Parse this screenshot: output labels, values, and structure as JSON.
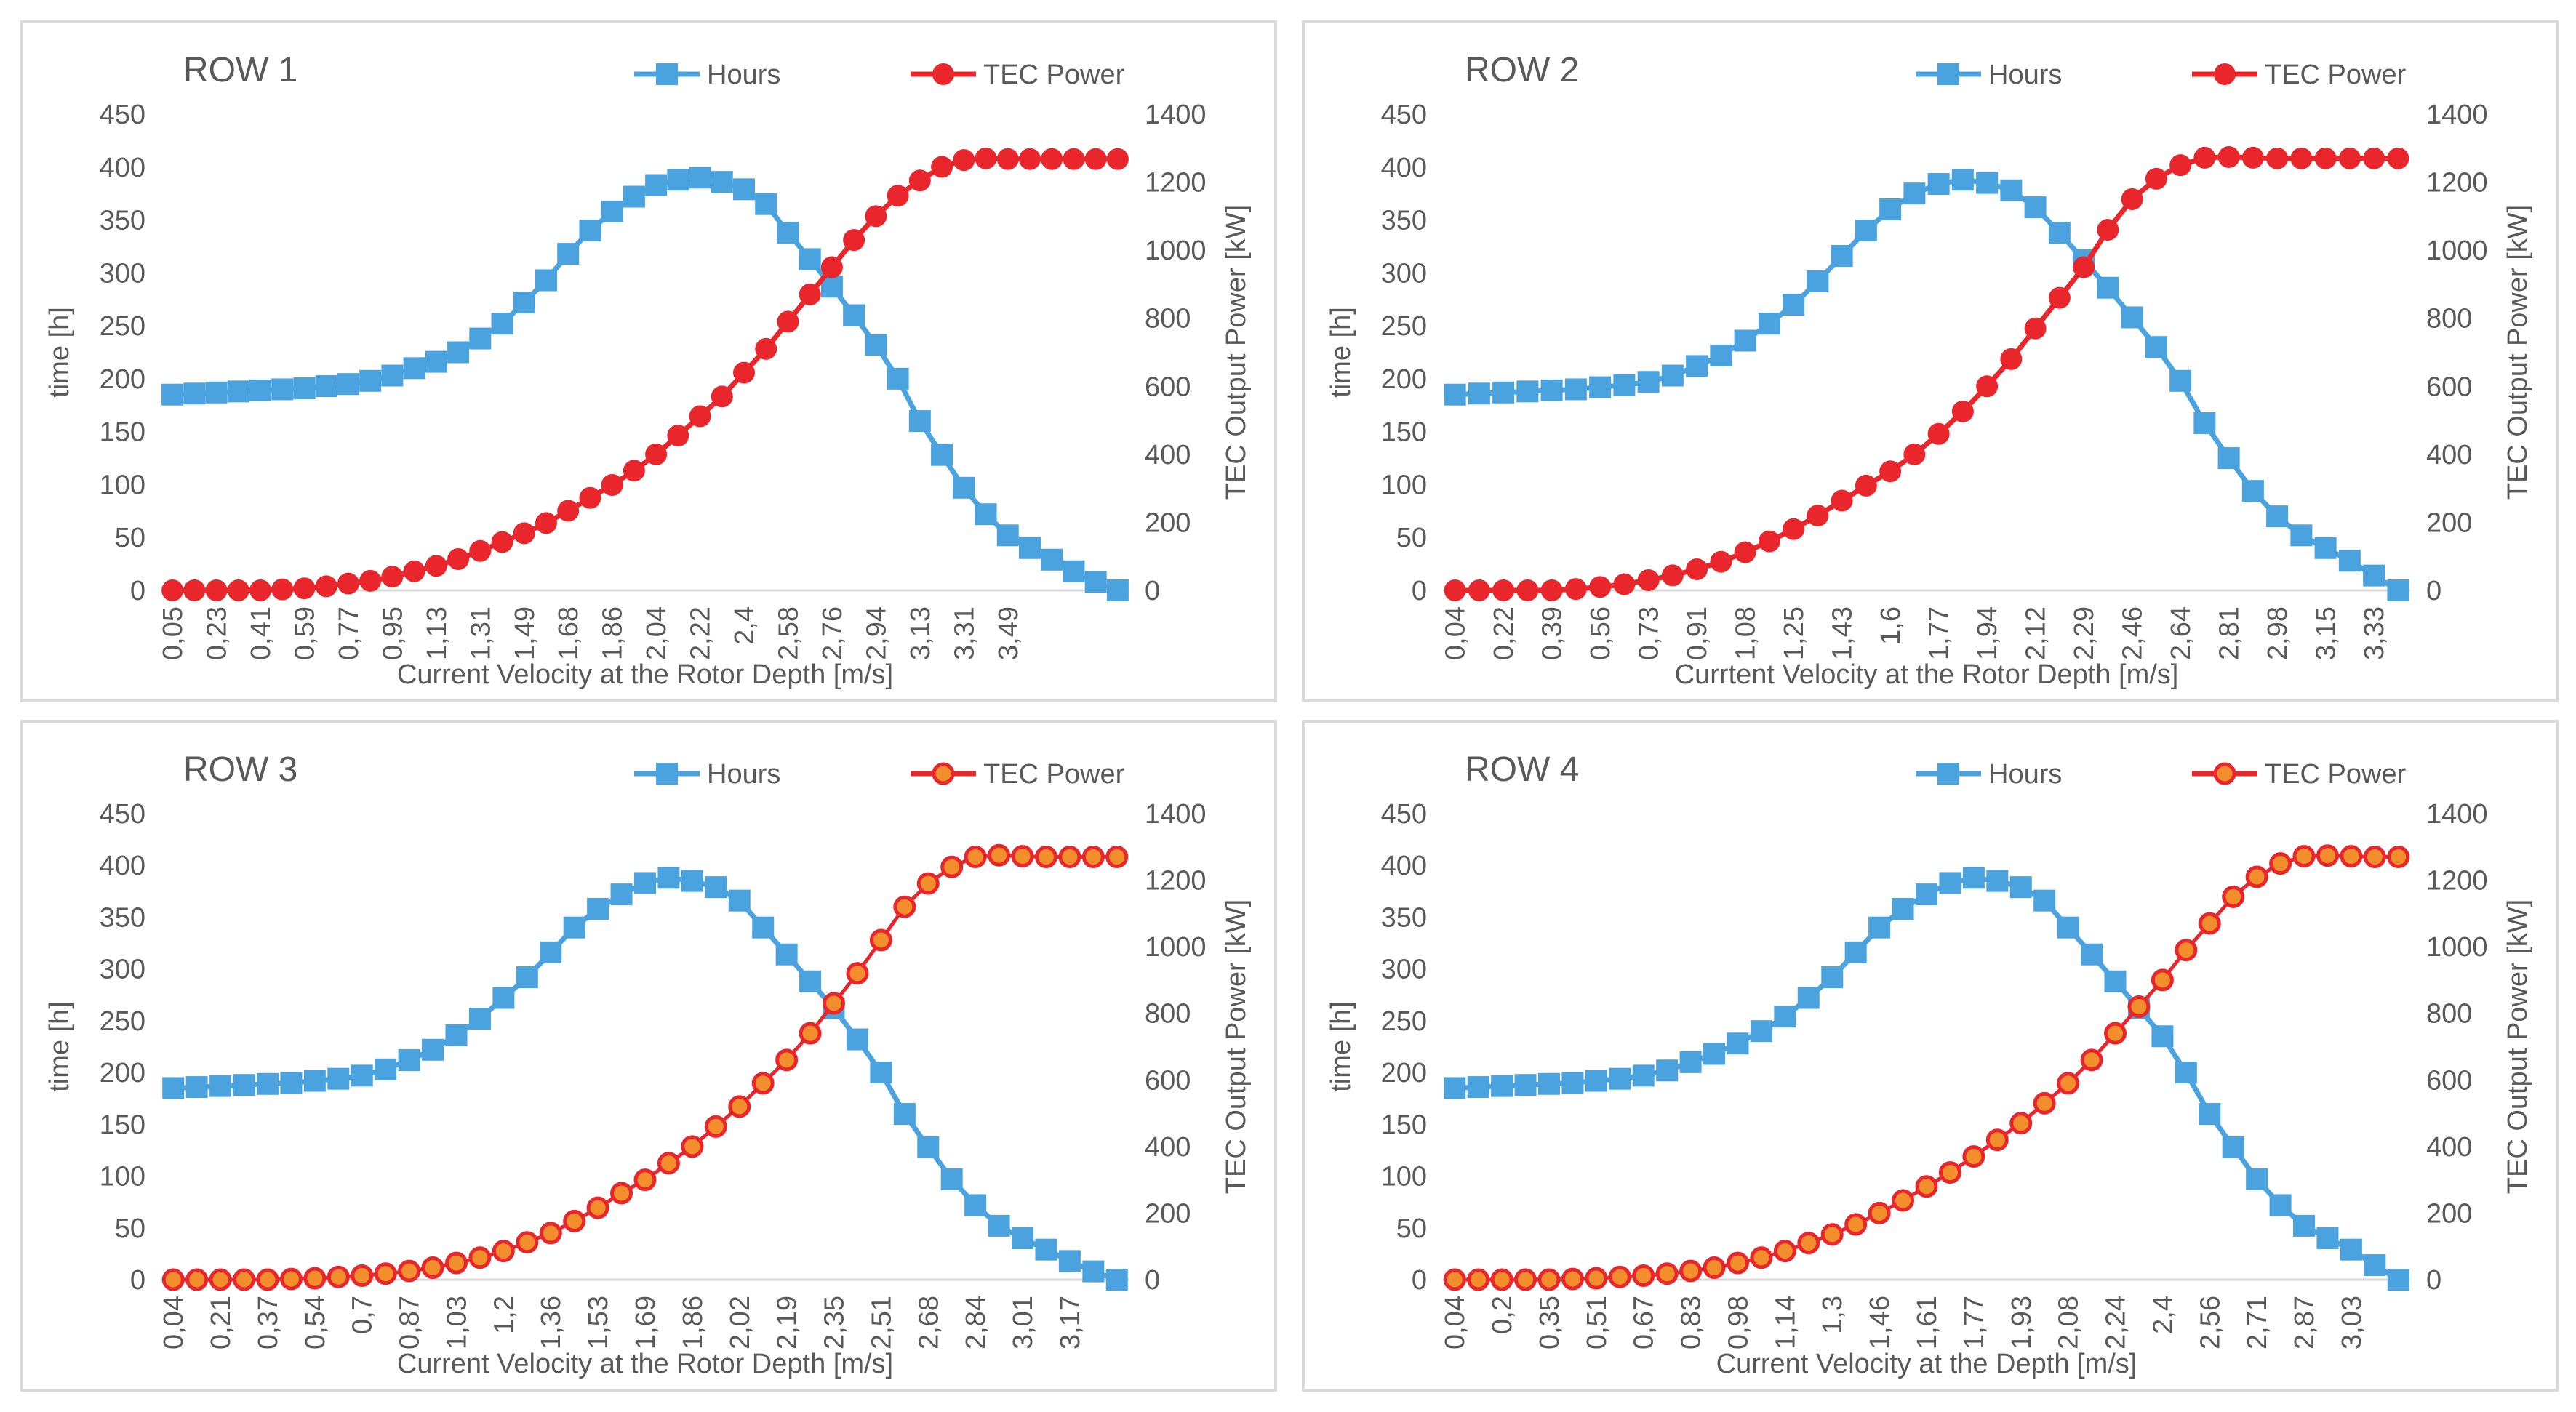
{
  "colors": {
    "hours": "#4aa3df",
    "power": "#e8262c",
    "power_marker_fill": "#f28e2b",
    "axis_text": "#595959",
    "border": "#d9d9d9"
  },
  "chart_data": [
    {
      "type": "line",
      "title": "ROW 1",
      "xlabel": "Current Velocity at the Rotor Depth [m/s]",
      "ylabel": "time [h]",
      "y2label": "TEC Output Power [kW]",
      "ylim": [
        0,
        450
      ],
      "yticks": [
        0,
        50,
        100,
        150,
        200,
        250,
        300,
        350,
        400,
        450
      ],
      "y2lim": [
        0,
        1400
      ],
      "y2ticks": [
        0,
        200,
        400,
        600,
        800,
        1000,
        1200,
        1400
      ],
      "tick_labels": [
        "0,05",
        "0,23",
        "0,41",
        "0,59",
        "0,77",
        "0,95",
        "1,13",
        "1,31",
        "1,49",
        "1,68",
        "1,86",
        "2,04",
        "2,22",
        "2,4",
        "2,58",
        "2,76",
        "2,94",
        "3,13",
        "3,31",
        "3,49"
      ],
      "legend": "top-right",
      "power_marker": "solid",
      "series": [
        {
          "name": "Hours",
          "axis": "left",
          "marker": "square",
          "values": [
            185,
            186,
            187,
            188,
            189,
            190,
            191,
            193,
            195,
            198,
            203,
            210,
            216,
            225,
            238,
            252,
            272,
            293,
            318,
            340,
            358,
            372,
            383,
            388,
            390,
            386,
            379,
            365,
            338,
            313,
            287,
            260,
            232,
            200,
            160,
            128,
            97,
            72,
            52,
            40,
            29,
            18,
            8,
            0
          ]
        },
        {
          "name": "TEC Power",
          "axis": "right",
          "marker": "circle",
          "values": [
            0,
            0,
            0,
            0,
            0,
            3,
            6,
            12,
            20,
            28,
            40,
            56,
            72,
            92,
            116,
            142,
            168,
            198,
            234,
            272,
            310,
            352,
            400,
            455,
            512,
            570,
            640,
            710,
            790,
            870,
            950,
            1030,
            1100,
            1160,
            1205,
            1245,
            1265,
            1270,
            1268,
            1268,
            1268,
            1268,
            1268,
            1268
          ]
        }
      ]
    },
    {
      "type": "line",
      "title": "ROW 2",
      "xlabel": "Currtent Velocity at the Rotor Depth [m/s]",
      "ylabel": "time [h]",
      "y2label": "TEC Output Power [kW]",
      "ylim": [
        0,
        450
      ],
      "yticks": [
        0,
        50,
        100,
        150,
        200,
        250,
        300,
        350,
        400,
        450
      ],
      "y2lim": [
        0,
        1400
      ],
      "y2ticks": [
        0,
        200,
        400,
        600,
        800,
        1000,
        1200,
        1400
      ],
      "tick_labels": [
        "0,04",
        "0,22",
        "0,39",
        "0,56",
        "0,73",
        "0,91",
        "1,08",
        "1,25",
        "1,43",
        "1,6",
        "1,77",
        "1,94",
        "2,12",
        "2,29",
        "2,46",
        "2,64",
        "2,81",
        "2,98",
        "3,15",
        "3,33"
      ],
      "legend": "top-right",
      "power_marker": "solid",
      "series": [
        {
          "name": "Hours",
          "axis": "left",
          "marker": "square",
          "values": [
            185,
            186,
            187,
            188,
            189,
            190,
            192,
            194,
            197,
            203,
            212,
            222,
            236,
            252,
            270,
            292,
            316,
            340,
            360,
            375,
            384,
            388,
            385,
            378,
            362,
            338,
            312,
            286,
            258,
            230,
            198,
            158,
            125,
            94,
            70,
            52,
            40,
            28,
            14,
            0
          ]
        },
        {
          "name": "TEC Power",
          "axis": "right",
          "marker": "circle",
          "values": [
            0,
            0,
            0,
            0,
            0,
            4,
            10,
            18,
            30,
            44,
            62,
            84,
            112,
            144,
            180,
            220,
            264,
            308,
            350,
            400,
            460,
            526,
            600,
            680,
            770,
            860,
            950,
            1060,
            1150,
            1210,
            1250,
            1272,
            1274,
            1272,
            1270,
            1270,
            1270,
            1270,
            1270,
            1270
          ]
        }
      ]
    },
    {
      "type": "line",
      "title": "ROW 3",
      "xlabel": "Current Velocity at the Rotor Depth [m/s]",
      "ylabel": "time [h]",
      "y2label": "TEC Output Power [kW]",
      "ylim": [
        0,
        450
      ],
      "yticks": [
        0,
        50,
        100,
        150,
        200,
        250,
        300,
        350,
        400,
        450
      ],
      "y2lim": [
        0,
        1400
      ],
      "y2ticks": [
        0,
        200,
        400,
        600,
        800,
        1000,
        1200,
        1400
      ],
      "tick_labels": [
        "0,04",
        "0,21",
        "0,37",
        "0,54",
        "0,7",
        "0,87",
        "1,03",
        "1,2",
        "1,36",
        "1,53",
        "1,69",
        "1,86",
        "2,02",
        "2,19",
        "2,35",
        "2,51",
        "2,68",
        "2,84",
        "3,01",
        "3,17"
      ],
      "legend": "top-right",
      "power_marker": "ring",
      "series": [
        {
          "name": "Hours",
          "axis": "left",
          "marker": "square",
          "values": [
            185,
            186,
            187,
            188,
            189,
            190,
            192,
            194,
            197,
            203,
            212,
            222,
            236,
            252,
            272,
            292,
            316,
            340,
            358,
            372,
            383,
            388,
            385,
            379,
            366,
            340,
            314,
            288,
            262,
            232,
            200,
            160,
            128,
            97,
            72,
            52,
            40,
            29,
            18,
            8,
            0
          ]
        },
        {
          "name": "TEC Power",
          "axis": "right",
          "marker": "circle",
          "values": [
            0,
            0,
            0,
            0,
            0,
            2,
            4,
            8,
            12,
            18,
            26,
            36,
            50,
            66,
            86,
            112,
            140,
            176,
            216,
            260,
            300,
            350,
            400,
            460,
            520,
            590,
            660,
            740,
            830,
            920,
            1020,
            1120,
            1190,
            1240,
            1270,
            1275,
            1272,
            1270,
            1270,
            1270,
            1270
          ]
        }
      ]
    },
    {
      "type": "line",
      "title": "ROW 4",
      "xlabel": "Current Velocity at the Depth [m/s]",
      "ylabel": "time [h]",
      "y2label": "TEC Output Power [kW]",
      "ylim": [
        0,
        450
      ],
      "yticks": [
        0,
        50,
        100,
        150,
        200,
        250,
        300,
        350,
        400,
        450
      ],
      "y2lim": [
        0,
        1400
      ],
      "y2ticks": [
        0,
        200,
        400,
        600,
        800,
        1000,
        1200,
        1400
      ],
      "tick_labels": [
        "0,04",
        "0,2",
        "0,35",
        "0,51",
        "0,67",
        "0,83",
        "0,98",
        "1,14",
        "1,3",
        "1,46",
        "1,61",
        "1,77",
        "1,93",
        "2,08",
        "2,24",
        "2,4",
        "2,56",
        "2,71",
        "2,87",
        "3,03"
      ],
      "legend": "top-right",
      "power_marker": "ring",
      "series": [
        {
          "name": "Hours",
          "axis": "left",
          "marker": "square",
          "values": [
            185,
            186,
            187,
            188,
            189,
            190,
            192,
            194,
            197,
            202,
            210,
            218,
            228,
            240,
            254,
            272,
            292,
            316,
            340,
            358,
            372,
            383,
            388,
            385,
            379,
            366,
            340,
            314,
            288,
            262,
            235,
            200,
            160,
            128,
            97,
            72,
            52,
            40,
            29,
            14,
            0
          ]
        },
        {
          "name": "TEC Power",
          "axis": "right",
          "marker": "circle",
          "values": [
            0,
            0,
            0,
            0,
            0,
            2,
            4,
            8,
            12,
            18,
            26,
            36,
            50,
            66,
            86,
            110,
            136,
            166,
            200,
            238,
            280,
            322,
            370,
            420,
            470,
            530,
            590,
            660,
            740,
            820,
            900,
            990,
            1070,
            1150,
            1210,
            1250,
            1272,
            1274,
            1272,
            1270,
            1270
          ]
        }
      ]
    }
  ]
}
